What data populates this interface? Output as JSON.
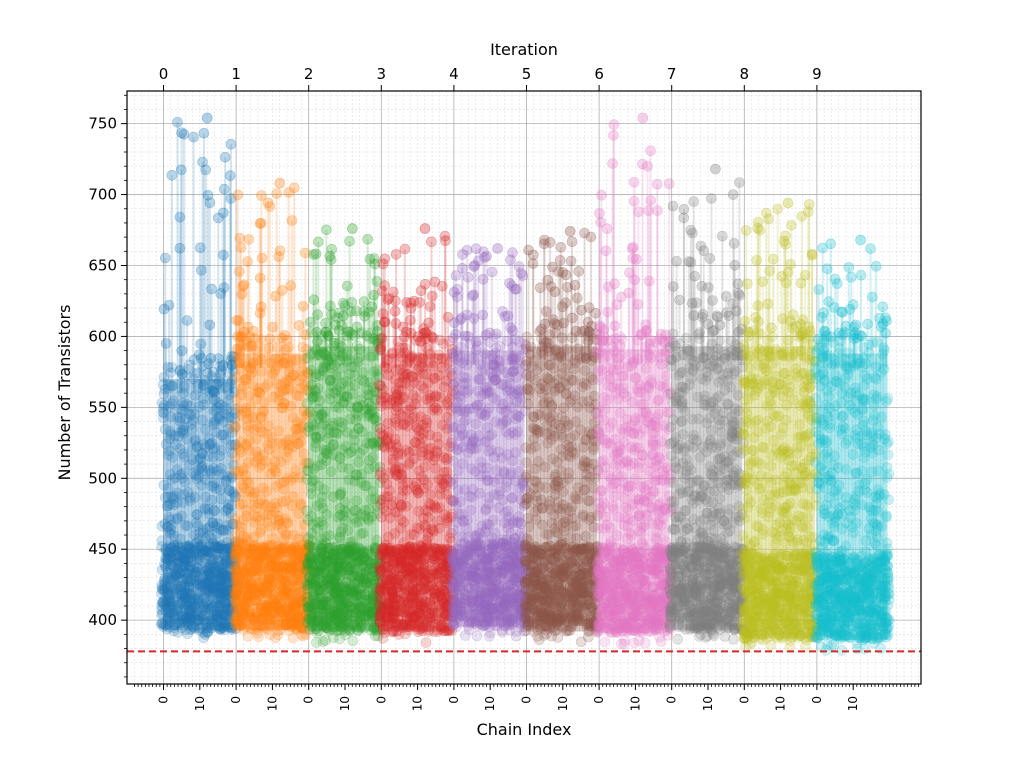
{
  "chart_data": {
    "type": "scatter",
    "title": "",
    "xlabel": "Chain Index",
    "x2label": "Iteration",
    "ylabel": "Number of Transistors",
    "ylim": [
      355,
      773
    ],
    "yticks": [
      400,
      450,
      500,
      550,
      600,
      650,
      700,
      750
    ],
    "grid": true,
    "iterations": [
      0,
      1,
      2,
      3,
      4,
      5,
      6,
      7,
      8,
      9
    ],
    "chains_per_iteration": 20,
    "chain_tick_labels": [
      "0",
      "10"
    ],
    "reference_line": {
      "value": 378,
      "style": "dashed",
      "color": "#d62728"
    },
    "series": [
      {
        "name": "0",
        "color": "#1f77b4",
        "min": 385,
        "core_top": 580,
        "max": 754
      },
      {
        "name": "1",
        "color": "#ff7f0e",
        "min": 385,
        "core_top": 598,
        "max": 708
      },
      {
        "name": "2",
        "color": "#2ca02c",
        "min": 384,
        "core_top": 603,
        "max": 676
      },
      {
        "name": "3",
        "color": "#d62728",
        "min": 384,
        "core_top": 598,
        "max": 676
      },
      {
        "name": "4",
        "color": "#9467bd",
        "min": 387,
        "core_top": 600,
        "max": 662
      },
      {
        "name": "5",
        "color": "#8c564b",
        "min": 384,
        "core_top": 603,
        "max": 674
      },
      {
        "name": "6",
        "color": "#e377c2",
        "min": 383,
        "core_top": 601,
        "max": 754
      },
      {
        "name": "7",
        "color": "#7f7f7f",
        "min": 385,
        "core_top": 603,
        "max": 718
      },
      {
        "name": "8",
        "color": "#bcbd22",
        "min": 379,
        "core_top": 603,
        "max": 694
      },
      {
        "name": "9",
        "color": "#17becf",
        "min": 378,
        "core_top": 598,
        "max": 668
      }
    ]
  }
}
